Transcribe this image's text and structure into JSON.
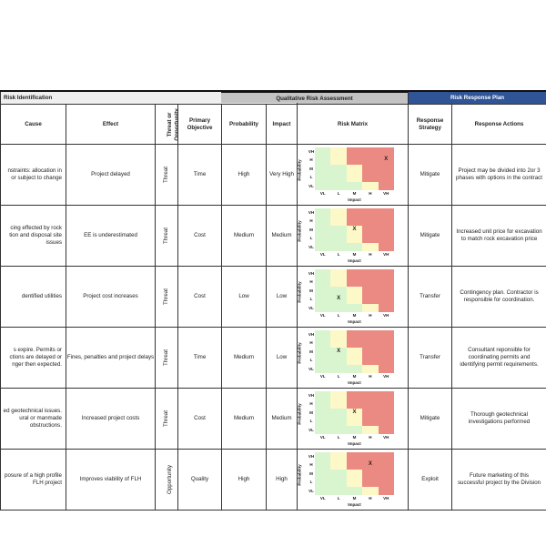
{
  "bands": {
    "identification": "Risk Identification",
    "assessment": "Qualitative Risk Assessment",
    "response": "Risk Response Plan"
  },
  "headers": {
    "cause": "Cause",
    "effect": "Effect",
    "threat": "Threat or Opportunity",
    "objective": "Primary Objective",
    "probability": "Probability",
    "impact": "Impact",
    "matrix": "Risk Matrix",
    "strategy": "Response Strategy",
    "actions": "Response Actions"
  },
  "matrix_labels": {
    "levels": [
      "VH",
      "H",
      "M",
      "L",
      "VL"
    ],
    "impact_levels": [
      "VL",
      "L",
      "M",
      "H",
      "VH"
    ],
    "prob_title": "Probability",
    "impact_title": "Impact",
    "marker": "X"
  },
  "matrix_colors": {
    "green": "#d8f5cf",
    "yellow": "#fdf8c8",
    "red": "#eb8a82",
    "grid": [
      [
        "g",
        "y",
        "r",
        "r",
        "r"
      ],
      [
        "g",
        "y",
        "r",
        "r",
        "r"
      ],
      [
        "g",
        "g",
        "y",
        "r",
        "r"
      ],
      [
        "g",
        "g",
        "y",
        "r",
        "r"
      ],
      [
        "g",
        "g",
        "g",
        "y",
        "r"
      ]
    ]
  },
  "rows": [
    {
      "cause": "nstraints: allocation in\nor subject to change",
      "effect": "Project delayed",
      "type": "Threat",
      "objective": "Time",
      "probability": "High",
      "impact": "Very High",
      "prob_idx": 1,
      "imp_idx": 4,
      "strategy": "Mitigate",
      "actions": "Project may be divided into 2or 3 phases with options in the contract"
    },
    {
      "cause": "cing effected by rock\ntion and disposal site\nissues",
      "effect": "EE is underestimated",
      "type": "Threat",
      "objective": "Cost",
      "probability": "Medium",
      "impact": "Medium",
      "prob_idx": 2,
      "imp_idx": 2,
      "strategy": "Mitigate",
      "actions": "Increased unit price for excavation to match rock excavation price"
    },
    {
      "cause": "dentified utilities",
      "effect": "Project cost increases",
      "type": "Threat",
      "objective": "Cost",
      "probability": "Low",
      "impact": "Low",
      "prob_idx": 3,
      "imp_idx": 1,
      "strategy": "Transfer",
      "actions": "Contingency plan.  Contractor is responsible for coordination."
    },
    {
      "cause": "s expire.  Permits or\nctions are delayed or\nnger then expected.",
      "effect": "Fines,  penalties and project delays",
      "type": "Threat",
      "objective": "Time",
      "probability": "Medium",
      "impact": "Low",
      "prob_idx": 2,
      "imp_idx": 1,
      "strategy": "Transfer",
      "actions": "Consultant reponsible for coordinating permits and identifying permit requirements."
    },
    {
      "cause": "ed geotechnical issues.\nural or manmade\nobstructions.",
      "effect": "Increased project costs",
      "type": "Threat",
      "objective": "Cost",
      "probability": "Medium",
      "impact": "Medium",
      "prob_idx": 2,
      "imp_idx": 2,
      "strategy": "Mitigate",
      "actions": "Thorough geotechnical investigations performed"
    },
    {
      "cause": "posure of a high profile\nFLH project",
      "effect": "Improves viability of FLH",
      "type": "Opportunity",
      "objective": "Quality",
      "probability": "High",
      "impact": "High",
      "prob_idx": 1,
      "imp_idx": 3,
      "strategy": "Exploit",
      "actions": "Future marketing of this successful project by the Division"
    }
  ]
}
